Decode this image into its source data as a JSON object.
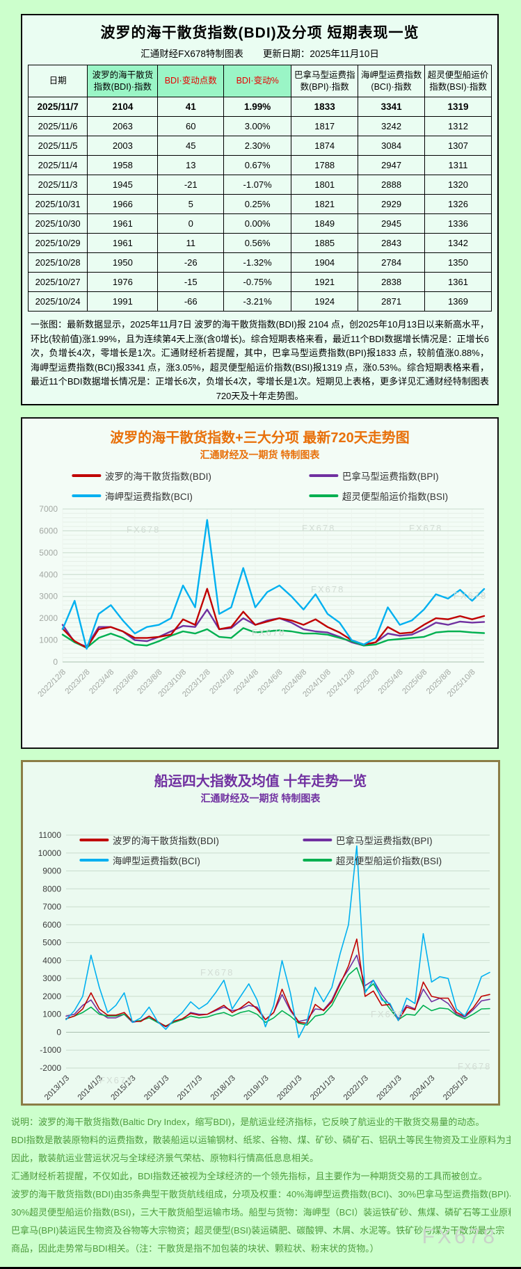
{
  "page": {
    "watermark": "FX678"
  },
  "top_panel": {
    "title": "波罗的海干散货指数(BDI)及分项  短期表现一览",
    "subtitle_left": "汇通财经FX678特制图表",
    "subtitle_right": "更新日期：2025年11月10日",
    "table": {
      "headers": [
        "日期",
        "波罗的海干散货指数(BDI)·指数",
        "BDI·变动点数",
        "BDI·变动%",
        "巴拿马型运费指数(BPI)·指数",
        "海岬型运费指数(BCI)·指数",
        "超灵便型船运价指数(BSI)·指数"
      ],
      "rows": [
        [
          "2025/11/7",
          "2104",
          "41",
          "1.99%",
          "1833",
          "3341",
          "1319"
        ],
        [
          "2025/11/6",
          "2063",
          "60",
          "3.00%",
          "1817",
          "3242",
          "1312"
        ],
        [
          "2025/11/5",
          "2003",
          "45",
          "2.30%",
          "1874",
          "3084",
          "1307"
        ],
        [
          "2025/11/4",
          "1958",
          "13",
          "0.67%",
          "1788",
          "2947",
          "1311"
        ],
        [
          "2025/11/3",
          "1945",
          "-21",
          "-1.07%",
          "1801",
          "2888",
          "1320"
        ],
        [
          "2025/10/31",
          "1966",
          "5",
          "0.25%",
          "1821",
          "2929",
          "1326"
        ],
        [
          "2025/10/30",
          "1961",
          "0",
          "0.00%",
          "1849",
          "2945",
          "1336"
        ],
        [
          "2025/10/29",
          "1961",
          "11",
          "0.56%",
          "1885",
          "2843",
          "1342"
        ],
        [
          "2025/10/28",
          "1950",
          "-26",
          "-1.32%",
          "1904",
          "2784",
          "1350"
        ],
        [
          "2025/10/27",
          "1976",
          "-15",
          "-0.75%",
          "1921",
          "2838",
          "1361"
        ],
        [
          "2025/10/24",
          "1991",
          "-66",
          "-3.21%",
          "1924",
          "2871",
          "1369"
        ]
      ]
    },
    "summary": "一张图：最新数据显示，2025年11月7日 波罗的海干散货指数(BDI)报 2104 点，创2025年10月13日以来新高水平，环比(较前值)涨1.99%，且为连续第4天上涨(含0增长)。综合短期表格来看，最近11个BDI数据增长情况是：正增长6次，负增长4次，零增长是1次。汇通财经析若提醒，其中，巴拿马型运费指数(BPI)报1833 点，较前值涨0.88%，海岬型运费指数(BCI)报3341 点，涨3.05%，超灵便型船运价指数(BSI)报1319 点，涨0.53%。综合短期表格来看，最近11个BDI数据增长情况是：正增长6次，负增长4次，零增长是1次。短期见上表格，更多详见汇通财经特制图表720天及十年走势图。"
  },
  "chart_data": [
    {
      "type": "line",
      "title": "波罗的海干散货指数+三大分项  最新720天走势图",
      "subtitle": "汇通财经及一期货 特制图表",
      "ylim": [
        0,
        7000
      ],
      "ytick_step": 1000,
      "minor_step": 200,
      "x_grid": true,
      "x_tick_every": 2,
      "tick_color": "#a3a8a3",
      "line_width": 2.4,
      "legend_position": "top",
      "draw_order": [
        1,
        3,
        0,
        2
      ],
      "x_labels": [
        "2022/12/8",
        "2023/2/8",
        "2023/4/8",
        "2023/6/8",
        "2023/8/8",
        "2023/10/8",
        "2023/12/8",
        "2024/2/8",
        "2024/4/8",
        "2024/6/8",
        "2024/8/8",
        "2024/10/8",
        "2024/12/8",
        "2025/2/8",
        "2025/4/8",
        "2025/6/8",
        "2025/8/8",
        "2025/10/8"
      ],
      "series": [
        {
          "name": "波罗的海干散货指数(BDI)",
          "color": "#c00000",
          "values": [
            1520,
            950,
            650,
            1500,
            1600,
            1400,
            1100,
            1100,
            1150,
            1250,
            1950,
            1700,
            3350,
            1500,
            1600,
            2300,
            1700,
            1850,
            2000,
            1900,
            1700,
            1950,
            1600,
            1350,
            1000,
            800,
            900,
            1600,
            1300,
            1350,
            1700,
            2000,
            1950,
            2100,
            1950,
            2104
          ]
        },
        {
          "name": "巴拿马型运费指数(BPI)",
          "color": "#7030a0",
          "values": [
            1700,
            900,
            700,
            1600,
            1600,
            1400,
            1000,
            950,
            1150,
            1400,
            1650,
            1600,
            2400,
            1500,
            1550,
            2000,
            1700,
            1900,
            2000,
            1800,
            1500,
            1400,
            1350,
            1150,
            900,
            750,
            900,
            1300,
            1200,
            1250,
            1500,
            1800,
            1700,
            1850,
            1800,
            1833
          ]
        },
        {
          "name": "海岬型运费指数(BCI)",
          "color": "#00b0f0",
          "values": [
            1500,
            2800,
            600,
            2200,
            2600,
            1900,
            1300,
            1600,
            1700,
            2000,
            3500,
            2500,
            6500,
            2200,
            2500,
            4300,
            2500,
            3200,
            3500,
            3000,
            2400,
            3100,
            2200,
            1800,
            1000,
            800,
            1100,
            2500,
            1700,
            1900,
            2400,
            3100,
            2900,
            3300,
            2800,
            3341
          ]
        },
        {
          "name": "超灵便型船运价指数(BSI)",
          "color": "#00b050",
          "values": [
            1250,
            900,
            650,
            1100,
            1300,
            1100,
            800,
            750,
            950,
            1200,
            1400,
            1300,
            1500,
            1150,
            1100,
            1550,
            1350,
            1400,
            1450,
            1400,
            1300,
            1300,
            1250,
            1100,
            950,
            750,
            800,
            1000,
            1050,
            1100,
            1150,
            1350,
            1400,
            1400,
            1350,
            1319
          ]
        }
      ]
    },
    {
      "type": "line",
      "title": "船运四大指数及均值 十年走势一览",
      "subtitle": "汇通财经及一期货 特制图表",
      "ylim": [
        -2000,
        11000
      ],
      "ytick_step": 1000,
      "x_grid": false,
      "x_tick_every": 4,
      "tick_color": "#3a3a3a",
      "line_width": 1.6,
      "legend_position": "top-inside",
      "draw_order": [
        1,
        3,
        0,
        2
      ],
      "x_labels": [
        "2013/1/3",
        "2014/1/3",
        "2015/1/3",
        "2016/1/3",
        "2017/1/3",
        "2018/1/3",
        "2019/1/3",
        "2020/1/3",
        "2021/1/3",
        "2022/1/3",
        "2023/1/3",
        "2024/1/3",
        "2025/1/3"
      ],
      "series": [
        {
          "name": "波罗的海干散货指数(BDI)",
          "color": "#c00000",
          "values": [
            750,
            900,
            1300,
            2200,
            1300,
            950,
            950,
            1100,
            600,
            600,
            900,
            600,
            320,
            620,
            750,
            1050,
            950,
            1000,
            1250,
            1500,
            1100,
            1350,
            1700,
            1300,
            700,
            1100,
            2400,
            1300,
            550,
            500,
            1550,
            1200,
            1700,
            2700,
            3700,
            5200,
            2000,
            2300,
            1500,
            1550,
            650,
            1400,
            1250,
            2800,
            2000,
            1900,
            1900,
            1100,
            900,
            1350,
            2000,
            2104
          ]
        },
        {
          "name": "巴拿马型运费指数(BPI)",
          "color": "#7030a0",
          "values": [
            900,
            1000,
            1500,
            1800,
            1100,
            800,
            800,
            1000,
            550,
            650,
            900,
            550,
            300,
            600,
            700,
            1100,
            1000,
            1000,
            1200,
            1400,
            1200,
            1300,
            1500,
            1400,
            700,
            1100,
            2100,
            1200,
            600,
            700,
            1300,
            1250,
            1800,
            2800,
            3500,
            4300,
            2600,
            2900,
            2100,
            1500,
            750,
            1500,
            1300,
            2400,
            1700,
            1900,
            1600,
            1000,
            850,
            1250,
            1750,
            1833
          ]
        },
        {
          "name": "海岬型运费指数(BCI)",
          "color": "#00b0f0",
          "values": [
            700,
            1200,
            2000,
            4300,
            2500,
            1100,
            1500,
            2200,
            550,
            800,
            1400,
            600,
            160,
            700,
            1100,
            1700,
            1300,
            1600,
            2200,
            2900,
            1300,
            2000,
            2700,
            1800,
            300,
            1500,
            4000,
            2200,
            -300,
            600,
            2500,
            1700,
            2500,
            4400,
            6000,
            10400,
            2200,
            2900,
            1800,
            1600,
            650,
            1900,
            1600,
            5500,
            2800,
            3100,
            3000,
            1300,
            900,
            1800,
            3100,
            3341
          ]
        },
        {
          "name": "超灵便型船运价指数(BSI)",
          "color": "#00b050",
          "values": [
            750,
            900,
            1100,
            1400,
            1000,
            900,
            900,
            1000,
            600,
            650,
            800,
            550,
            350,
            550,
            700,
            900,
            800,
            850,
            1000,
            1100,
            900,
            1100,
            1200,
            1000,
            550,
            800,
            1200,
            900,
            500,
            400,
            900,
            1000,
            1500,
            2400,
            3200,
            3600,
            2300,
            2700,
            1900,
            1300,
            700,
            1000,
            950,
            1500,
            1200,
            1350,
            1300,
            950,
            750,
            1000,
            1300,
            1319
          ]
        }
      ]
    }
  ],
  "footer": {
    "lines": [
      "说明：波罗的海干散货指数(Baltic Dry Index，缩写BDI)，是航运业经济指标，它反映了航运业的干散货交易量的动态。",
      "BDI指数是散装原物料的运费指数，散装船运以运输钢材、纸浆、谷物、煤、矿砂、磷矿石、铝矾土等民生物资及工业原料为主，",
      "因此，散装航运业营运状况与全球经济景气荣枯、原物料行情高低息息相关。",
      "汇通财经析若提醒，不仅如此，BDI指数还被视为全球经济的一个领先指标，且主要作为一种期货交易的工具而被创立。",
      "波罗的海干散货指数(BDI)由35条典型干散货航线组成，分项及权重：40%海岬型运费指数(BCI)、30%巴拿马型运费指数(BPI)、",
      "30%超灵便型船运价指数(BSI)，三大干散货船型运输市场。船型与货物：海岬型（BCI）装运铁矿砂、焦煤、磷矿石等工业原料；",
      "巴拿马(BPI)装运民生物资及谷物等大宗物资；超灵便型(BSI)装运磷肥、碳酸钾、木屑、水泥等。铁矿砂与煤为干散货最大宗",
      "商品，因此走势常与BDI相关。（注：干散货是指不加包装的块状、颗粒状、粉末状的货物。）"
    ],
    "watermark": "FX678"
  }
}
